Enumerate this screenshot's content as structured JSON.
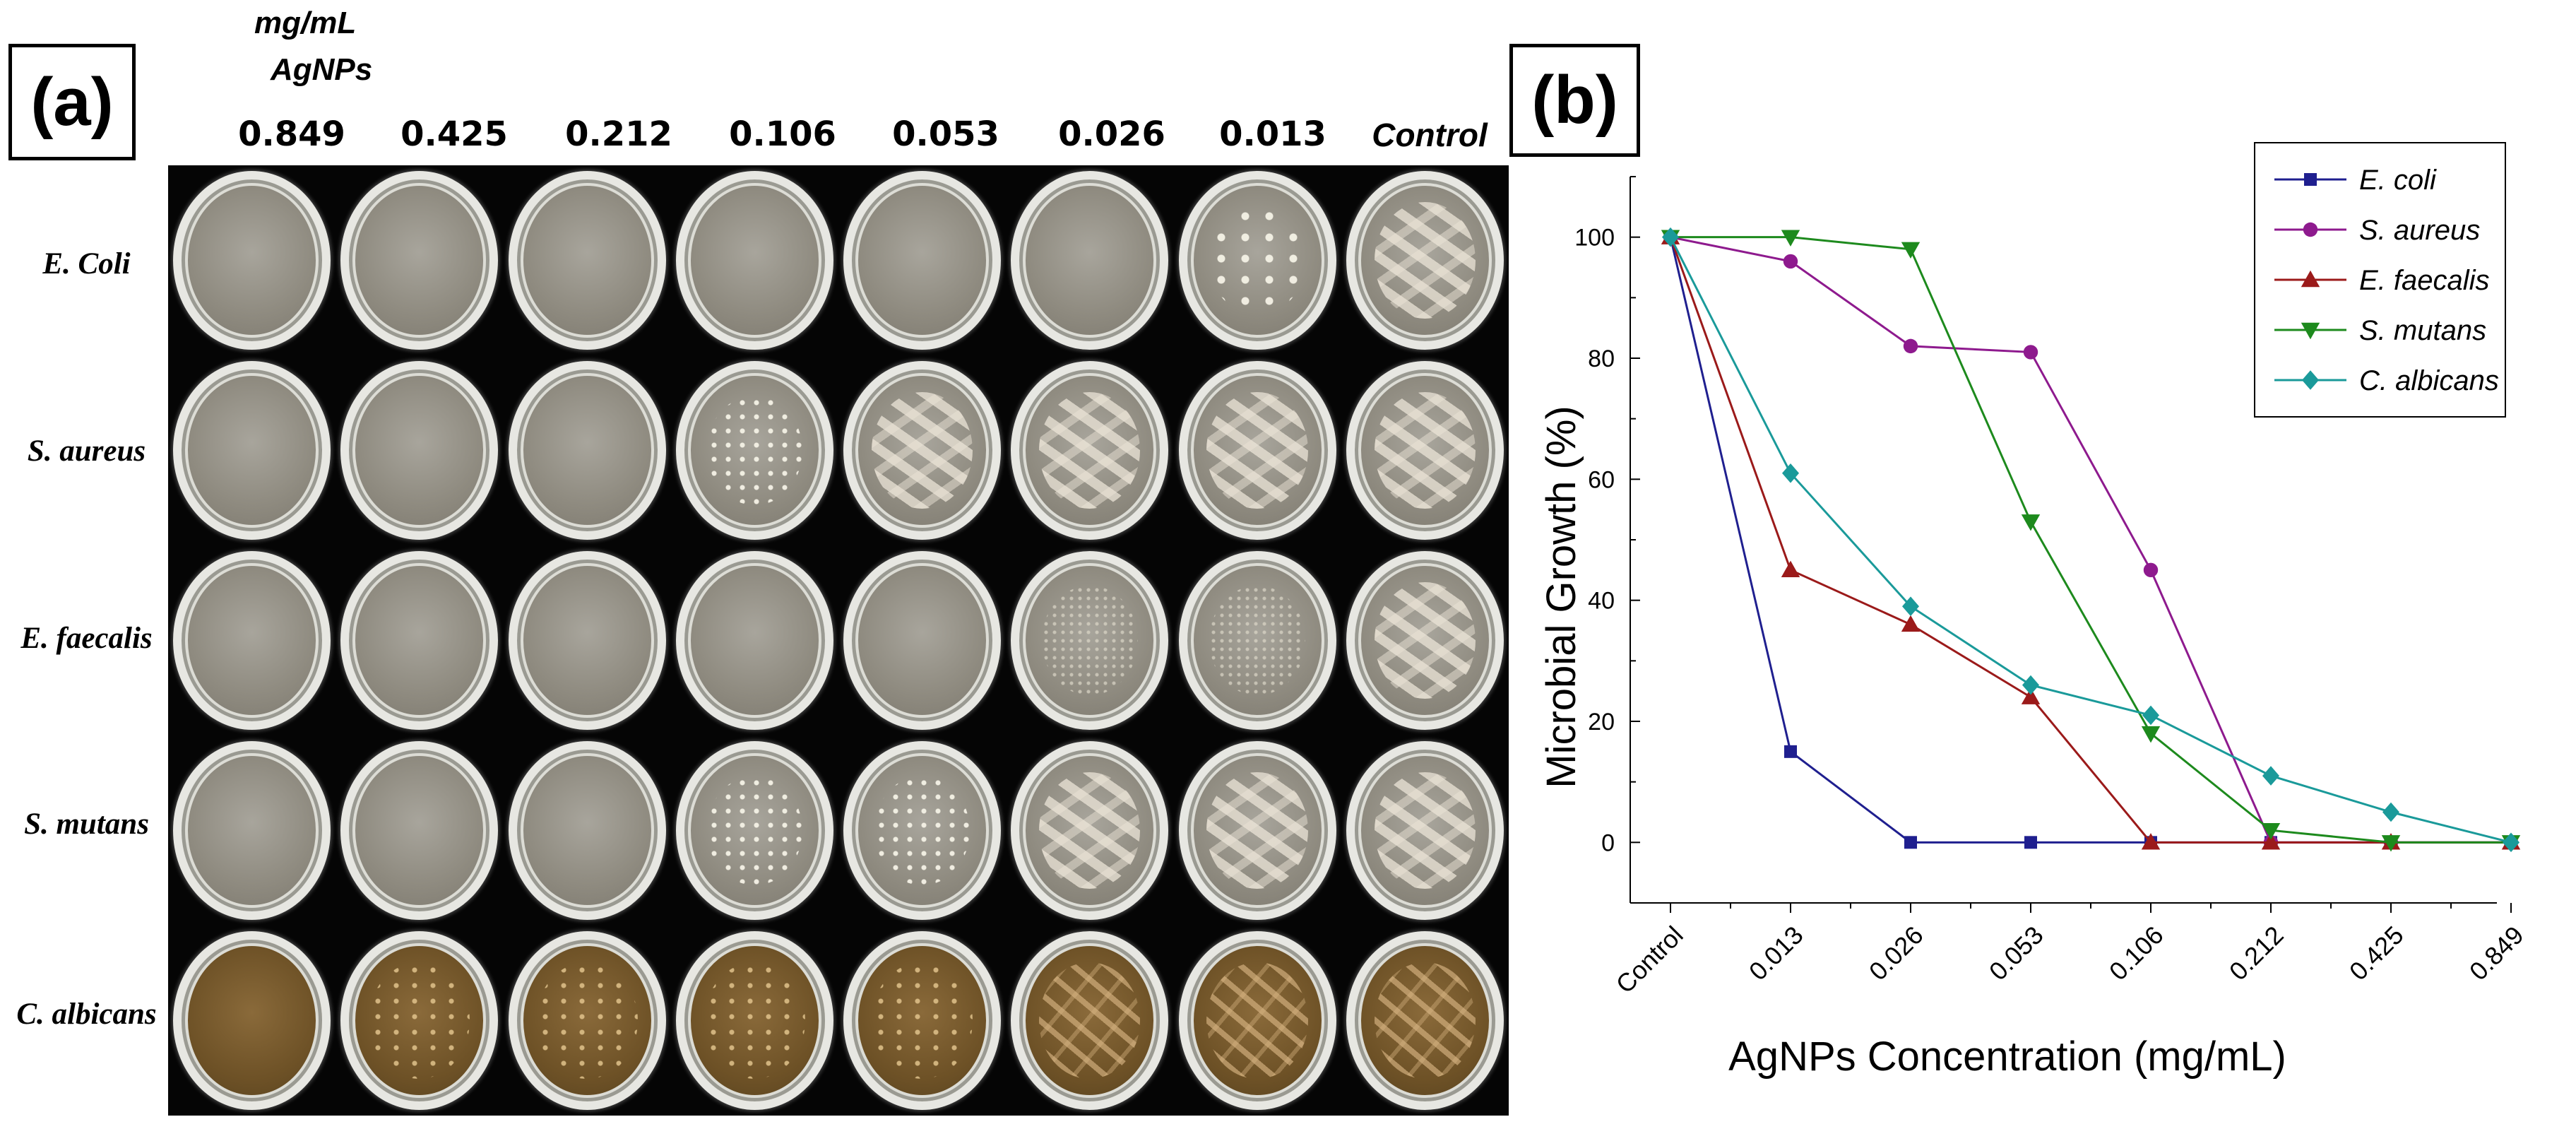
{
  "panel_a": {
    "label": "(a)",
    "unit_line1": "mg/mL",
    "unit_line2": "AgNPs",
    "concentrations": [
      "0.849",
      "0.425",
      "0.212",
      "0.106",
      "0.053",
      "0.026",
      "0.013",
      "Control"
    ],
    "organisms": [
      "E. Coli",
      "S. aureus",
      "E. faecalis",
      "S. mutans",
      "C. albicans"
    ],
    "growth_grid": [
      [
        "clear",
        "clear",
        "clear",
        "clear",
        "clear",
        "clear",
        "sparse",
        "streak"
      ],
      [
        "clear",
        "clear",
        "clear",
        "dots",
        "streak",
        "streak",
        "streak",
        "streak"
      ],
      [
        "clear",
        "clear",
        "clear",
        "clear",
        "clear",
        "fine",
        "fine",
        "streak"
      ],
      [
        "clear",
        "clear",
        "clear",
        "dots",
        "dots",
        "streak",
        "streak",
        "streak"
      ],
      [
        "brown",
        "brown-dots",
        "brown-dots",
        "brown-dots",
        "brown-dots",
        "brown-streak",
        "brown-streak",
        "brown-streak"
      ]
    ]
  },
  "chart_data": {
    "panel_label": "(b)",
    "type": "line",
    "categories": [
      "Control",
      "0.013",
      "0.026",
      "0.053",
      "0.106",
      "0.212",
      "0.425",
      "0.849"
    ],
    "xlabel": "AgNPs Concentration (mg/mL)",
    "ylabel": "Microbial Growth (%)",
    "ylim": [
      -10,
      110
    ],
    "yticks": [
      0,
      20,
      40,
      60,
      80,
      100
    ],
    "legend_position": "top-right",
    "series": [
      {
        "name": "E. coli",
        "color": "#1f1f8f",
        "marker": "square",
        "values": [
          100,
          15,
          0,
          0,
          0,
          0,
          0,
          0
        ]
      },
      {
        "name": "S. aureus",
        "color": "#8e1a8e",
        "marker": "circle",
        "values": [
          100,
          96,
          82,
          81,
          45,
          0,
          0,
          0
        ]
      },
      {
        "name": "E. faecalis",
        "color": "#9b1a1a",
        "marker": "triangle-up",
        "values": [
          100,
          45,
          36,
          24,
          0,
          0,
          0,
          0
        ]
      },
      {
        "name": "S. mutans",
        "color": "#1d8a1d",
        "marker": "triangle-down",
        "values": [
          100,
          100,
          98,
          53,
          18,
          2,
          0,
          0
        ]
      },
      {
        "name": "C. albicans",
        "color": "#1a9a9a",
        "marker": "diamond",
        "values": [
          100,
          61,
          39,
          26,
          21,
          11,
          5,
          0
        ]
      }
    ]
  }
}
